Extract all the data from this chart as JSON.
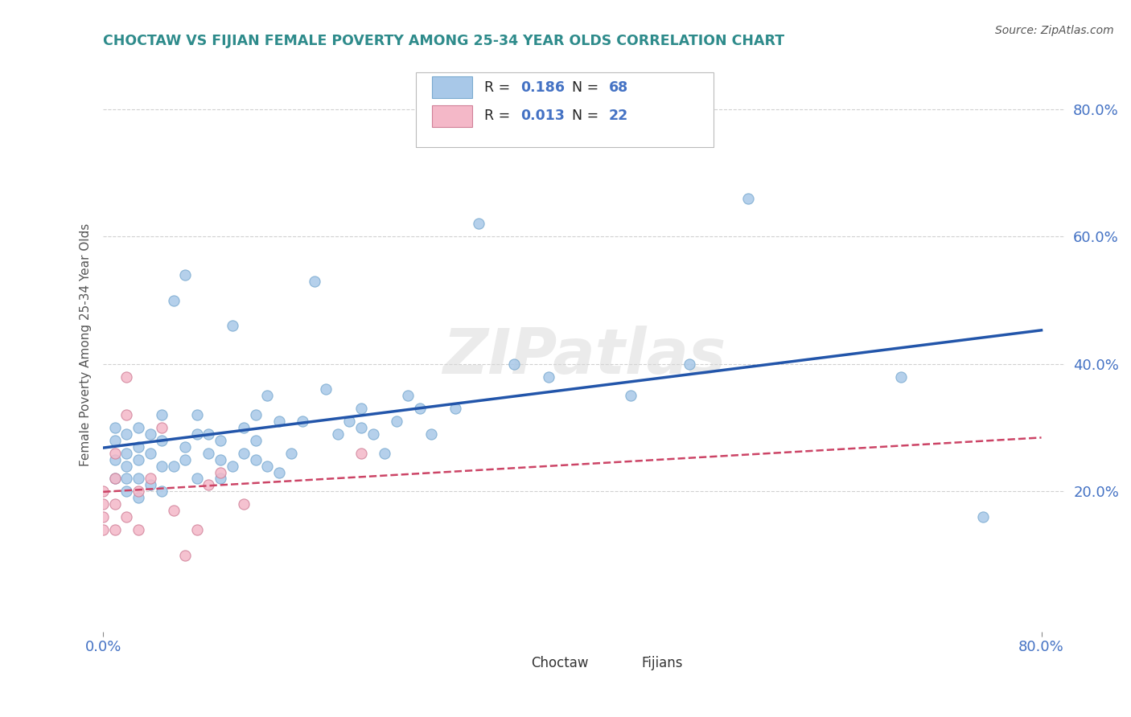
{
  "title": "CHOCTAW VS FIJIAN FEMALE POVERTY AMONG 25-34 YEAR OLDS CORRELATION CHART",
  "source": "Source: ZipAtlas.com",
  "ylabel": "Female Poverty Among 25-34 Year Olds",
  "choctaw_R": 0.186,
  "choctaw_N": 68,
  "fijian_R": 0.013,
  "fijian_N": 22,
  "choctaw_color": "#a8c8e8",
  "choctaw_edge": "#7aaad0",
  "fijian_color": "#f4b8c8",
  "fijian_edge": "#d08098",
  "title_color": "#2e8b8b",
  "axis_tick_color": "#4472c4",
  "ylabel_color": "#555555",
  "legend_text_color": "#4472c4",
  "trendline_choctaw_color": "#2255aa",
  "trendline_fijian_color": "#cc4466",
  "trendline_fijian_dashed_color": "#cc8899",
  "legend_label_choctaw": "Choctaw",
  "legend_label_fijian": "Fijians",
  "watermark": "ZIPatlas",
  "choctaw_x": [
    0.01,
    0.01,
    0.01,
    0.01,
    0.02,
    0.02,
    0.02,
    0.02,
    0.02,
    0.03,
    0.03,
    0.03,
    0.03,
    0.03,
    0.04,
    0.04,
    0.04,
    0.05,
    0.05,
    0.05,
    0.05,
    0.06,
    0.06,
    0.07,
    0.07,
    0.07,
    0.08,
    0.08,
    0.08,
    0.09,
    0.09,
    0.1,
    0.1,
    0.1,
    0.11,
    0.11,
    0.12,
    0.12,
    0.13,
    0.13,
    0.13,
    0.14,
    0.14,
    0.15,
    0.15,
    0.16,
    0.17,
    0.18,
    0.19,
    0.2,
    0.21,
    0.22,
    0.22,
    0.23,
    0.24,
    0.25,
    0.26,
    0.27,
    0.28,
    0.3,
    0.32,
    0.35,
    0.38,
    0.45,
    0.5,
    0.55,
    0.68,
    0.75
  ],
  "choctaw_y": [
    0.22,
    0.25,
    0.28,
    0.3,
    0.2,
    0.22,
    0.24,
    0.26,
    0.29,
    0.19,
    0.22,
    0.25,
    0.27,
    0.3,
    0.21,
    0.26,
    0.29,
    0.2,
    0.24,
    0.28,
    0.32,
    0.24,
    0.5,
    0.25,
    0.27,
    0.54,
    0.22,
    0.29,
    0.32,
    0.26,
    0.29,
    0.22,
    0.25,
    0.28,
    0.24,
    0.46,
    0.26,
    0.3,
    0.25,
    0.28,
    0.32,
    0.24,
    0.35,
    0.23,
    0.31,
    0.26,
    0.31,
    0.53,
    0.36,
    0.29,
    0.31,
    0.3,
    0.33,
    0.29,
    0.26,
    0.31,
    0.35,
    0.33,
    0.29,
    0.33,
    0.62,
    0.4,
    0.38,
    0.35,
    0.4,
    0.66,
    0.38,
    0.16
  ],
  "fijian_x": [
    0.0,
    0.0,
    0.0,
    0.0,
    0.01,
    0.01,
    0.01,
    0.01,
    0.02,
    0.02,
    0.02,
    0.03,
    0.03,
    0.04,
    0.05,
    0.06,
    0.07,
    0.08,
    0.09,
    0.1,
    0.12,
    0.22
  ],
  "fijian_y": [
    0.14,
    0.16,
    0.18,
    0.2,
    0.14,
    0.18,
    0.22,
    0.26,
    0.16,
    0.32,
    0.38,
    0.14,
    0.2,
    0.22,
    0.3,
    0.17,
    0.1,
    0.14,
    0.21,
    0.23,
    0.18,
    0.26
  ],
  "ytick_labels": [
    "20.0%",
    "40.0%",
    "60.0%",
    "80.0%"
  ],
  "ytick_values": [
    0.2,
    0.4,
    0.6,
    0.8
  ],
  "xtick_labels": [
    "0.0%",
    "80.0%"
  ],
  "xtick_values": [
    0.0,
    0.8
  ],
  "xlim": [
    0.0,
    0.82
  ],
  "ylim": [
    -0.02,
    0.88
  ],
  "grid_color": "#cccccc",
  "bg_color": "#ffffff"
}
